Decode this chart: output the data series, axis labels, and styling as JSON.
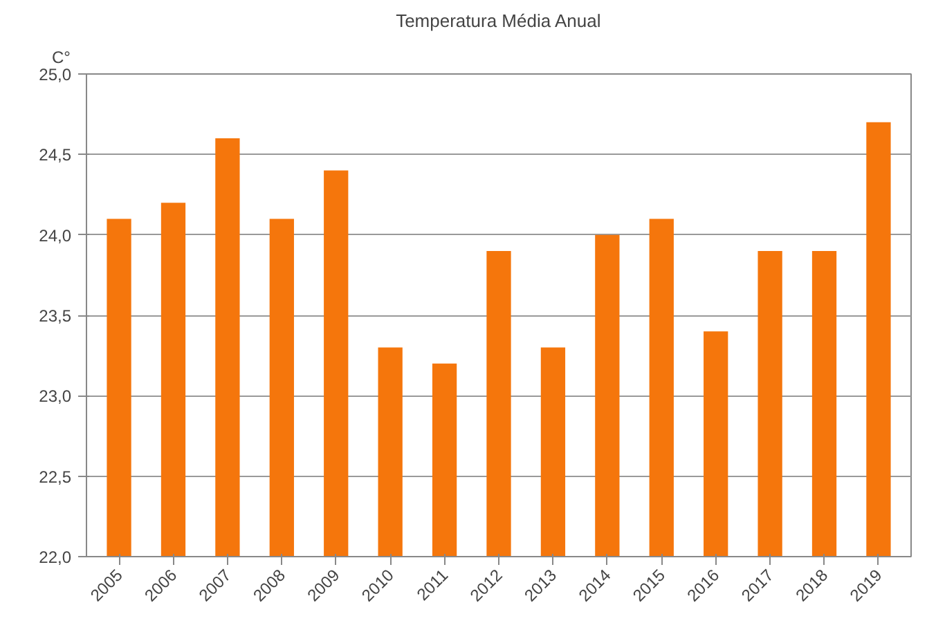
{
  "chart_data": {
    "type": "bar",
    "title": "Temperatura Média Anual",
    "ylabel": "C°",
    "categories": [
      "2005",
      "2006",
      "2007",
      "2008",
      "2009",
      "2010",
      "2011",
      "2012",
      "2013",
      "2014",
      "2015",
      "2016",
      "2017",
      "2018",
      "2019"
    ],
    "values": [
      24.1,
      24.2,
      24.6,
      24.1,
      24.4,
      23.3,
      23.2,
      23.9,
      23.3,
      24.0,
      24.1,
      23.4,
      23.9,
      23.9,
      24.7
    ],
    "color": "#f5760c",
    "ylim": [
      22,
      25
    ],
    "yticks": [
      {
        "value": 22,
        "label": "22,0"
      },
      {
        "value": 22.5,
        "label": "22,5"
      },
      {
        "value": 23,
        "label": "23,0"
      },
      {
        "value": 23.5,
        "label": "23,5"
      },
      {
        "value": 24,
        "label": "24,0"
      },
      {
        "value": 24.5,
        "label": "24,5"
      },
      {
        "value": 25,
        "label": "25,0"
      }
    ],
    "grid": "y"
  }
}
